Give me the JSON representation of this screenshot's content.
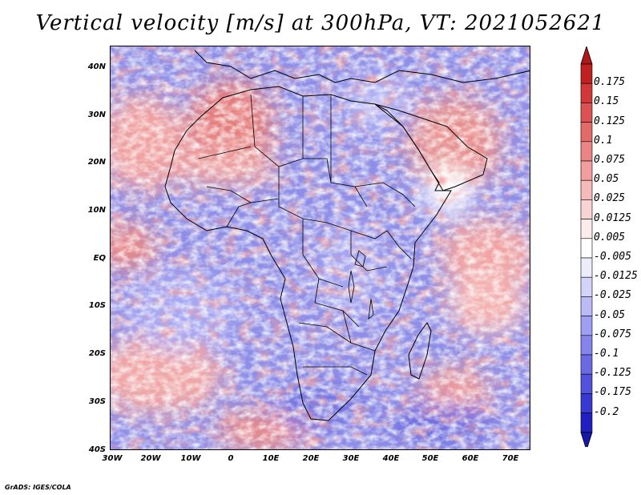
{
  "title": "Vertical velocity [m/s] at 300hPa, VT: 2021052621",
  "credit": "GrADS: IGES/COLA",
  "map": {
    "lat_labels": [
      "40N",
      "30N",
      "20N",
      "10N",
      "EQ",
      "10S",
      "20S",
      "30S",
      "40S"
    ],
    "lon_labels": [
      "30W",
      "20W",
      "10W",
      "0",
      "10E",
      "20E",
      "30E",
      "40E",
      "50E",
      "60E",
      "70E"
    ],
    "extent": {
      "lon_min": -30,
      "lon_max": 75,
      "lat_min": -40,
      "lat_max": 45
    }
  },
  "colorbar": {
    "labels": [
      "0.175",
      "0.15",
      "0.125",
      "0.1",
      "0.075",
      "0.05",
      "0.025",
      "0.0125",
      "0.005",
      "-0.005",
      "-0.0125",
      "-0.025",
      "-0.05",
      "-0.075",
      "-0.1",
      "-0.125",
      "-0.175",
      "-0.2"
    ],
    "colors": [
      "#c02020",
      "#d23838",
      "#dc5252",
      "#e46a6a",
      "#ec8484",
      "#f29e9e",
      "#f6baba",
      "#fad4d4",
      "#fdecec",
      "#ffffff",
      "#ececfd",
      "#d4d4fa",
      "#babaf6",
      "#9e9ef2",
      "#8484ec",
      "#6a6ae4",
      "#5252dc",
      "#3838d2",
      "#2020c0"
    ],
    "max_tip_color": "#b01818",
    "min_tip_color": "#1818a8"
  }
}
